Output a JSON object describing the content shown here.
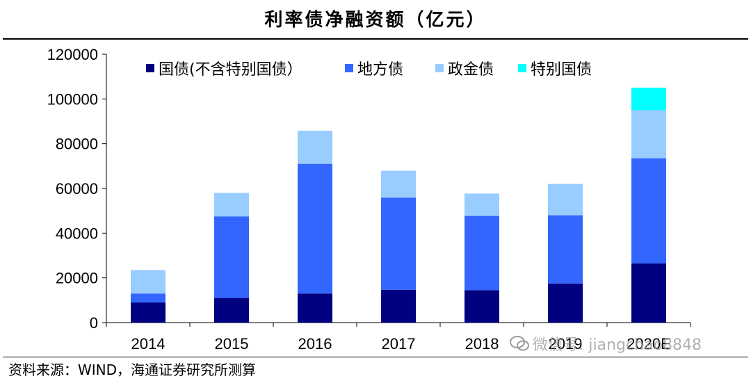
{
  "chart_data": {
    "type": "bar",
    "stacked": true,
    "title": "利率债净融资额（亿元）",
    "categories": [
      "2014",
      "2015",
      "2016",
      "2017",
      "2018",
      "2019",
      "2020E"
    ],
    "series": [
      {
        "name": "国债(不含特别国债）",
        "color": "#000080",
        "values": [
          9000,
          11000,
          13000,
          14700,
          14500,
          17500,
          26500
        ]
      },
      {
        "name": "地方债",
        "color": "#3366ff",
        "values": [
          4000,
          36500,
          58000,
          41200,
          33200,
          30500,
          47000
        ]
      },
      {
        "name": "政金债",
        "color": "#99ccff",
        "values": [
          10500,
          10500,
          14800,
          12000,
          10000,
          14000,
          21500
        ]
      },
      {
        "name": "特别国债",
        "color": "#00ffff",
        "values": [
          0,
          0,
          0,
          0,
          0,
          0,
          10000
        ]
      }
    ],
    "ylim": [
      0,
      120000
    ],
    "yticks": [
      "0",
      "20000",
      "40000",
      "60000",
      "80000",
      "100000",
      "120000"
    ],
    "legend_position": "top",
    "grid": false
  },
  "source": "资料来源：WIND，海通证券研究所测算",
  "watermark": "微信号: jiangchao8848"
}
